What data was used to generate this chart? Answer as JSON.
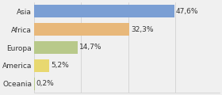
{
  "categories": [
    "Asia",
    "Africa",
    "Europa",
    "America",
    "Oceania"
  ],
  "values": [
    47.6,
    32.3,
    14.7,
    5.2,
    0.2
  ],
  "labels": [
    "47,6%",
    "32,3%",
    "14,7%",
    "5,2%",
    "0,2%"
  ],
  "bar_colors": [
    "#7b9fd4",
    "#e8b87a",
    "#b8c98a",
    "#e8d870",
    "#b8c98a"
  ],
  "background_color": "#f0f0f0",
  "bar_height": 0.7,
  "label_fontsize": 6.5,
  "tick_fontsize": 6.5,
  "xlim": [
    0,
    63
  ],
  "figsize": [
    2.8,
    1.2
  ],
  "dpi": 100
}
